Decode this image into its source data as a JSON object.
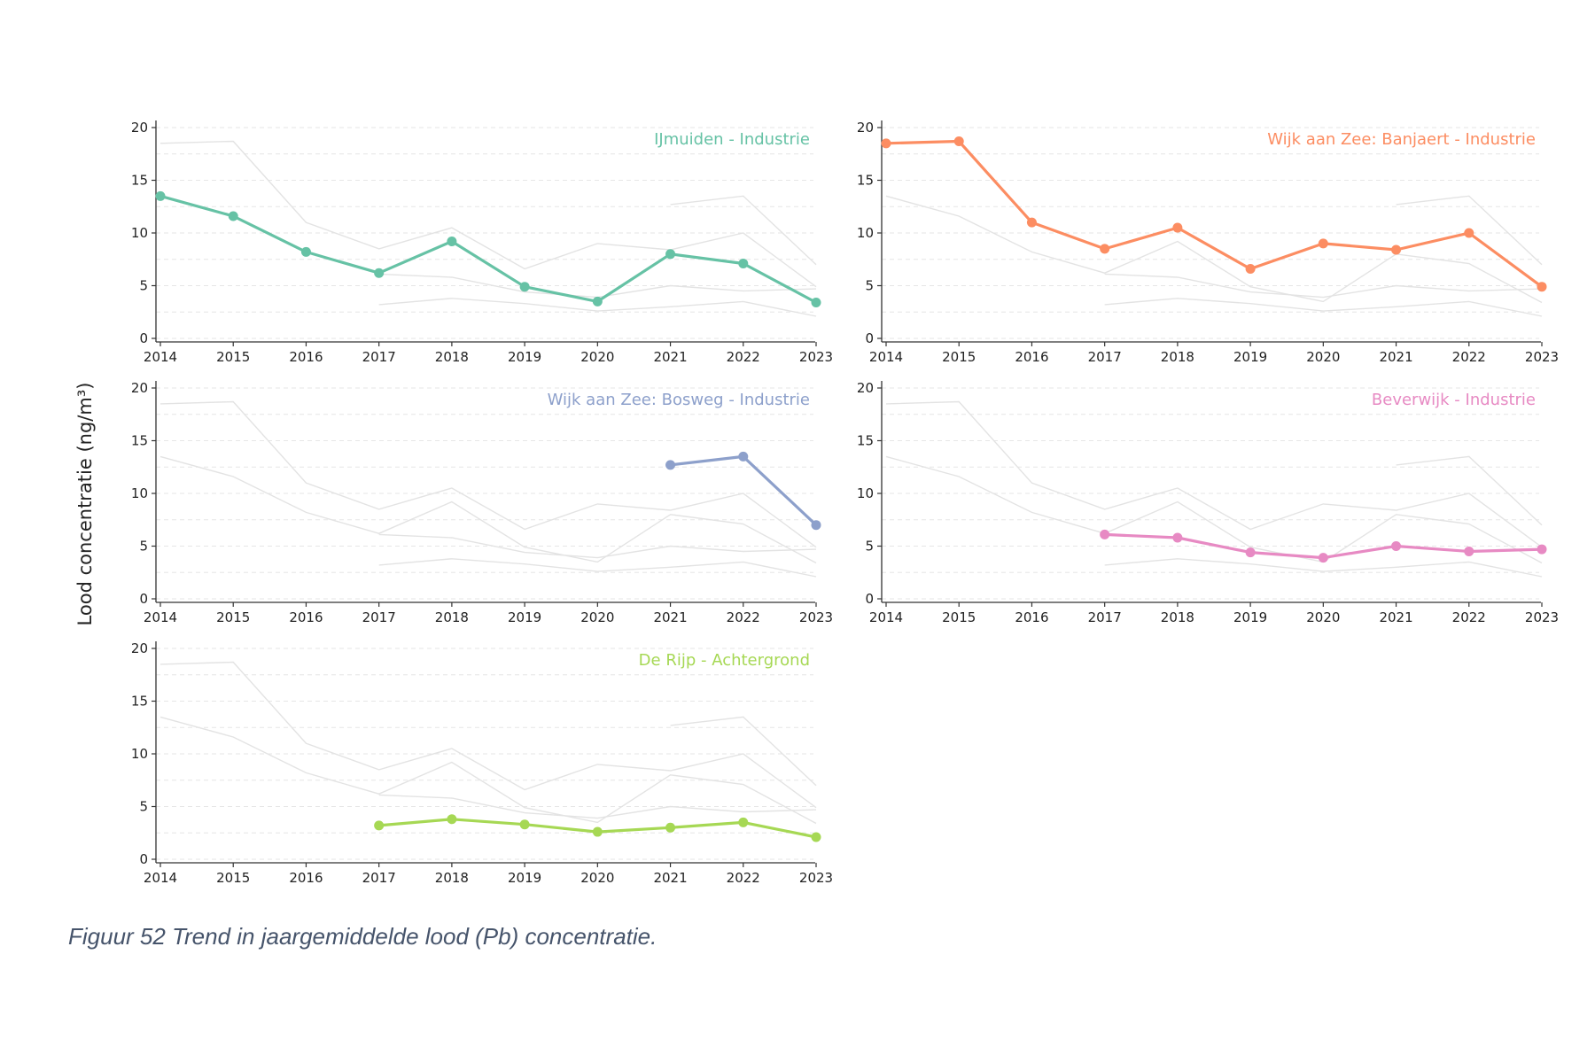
{
  "figure": {
    "ylabel": "Lood concentratie (ng/m³)",
    "caption": "Figuur 52 Trend in jaargemiddelde lood (Pb) concentratie."
  },
  "chart_data": {
    "type": "line",
    "x": [
      2014,
      2015,
      2016,
      2017,
      2018,
      2019,
      2020,
      2021,
      2022,
      2023
    ],
    "ylim": [
      0,
      20
    ],
    "yticks": [
      0,
      5,
      10,
      15,
      20
    ],
    "grid": "horizontal dashed",
    "background_series_color": "#e3e3e3",
    "panels": [
      {
        "title": "IJmuiden - Industrie",
        "color": "#66c2a5",
        "values": [
          13.5,
          11.6,
          8.2,
          6.2,
          9.2,
          4.9,
          3.5,
          8.0,
          7.1,
          3.4
        ]
      },
      {
        "title": "Wijk aan Zee: Banjaert - Industrie",
        "color": "#fc8d62",
        "values": [
          18.5,
          18.7,
          11.0,
          8.5,
          10.5,
          6.6,
          9.0,
          8.4,
          10.0,
          4.9
        ]
      },
      {
        "title": "Wijk aan Zee: Bosweg - Industrie",
        "color": "#8da0cb",
        "values": [
          null,
          null,
          null,
          null,
          null,
          null,
          null,
          12.7,
          13.5,
          7.0
        ]
      },
      {
        "title": "Beverwijk - Industrie",
        "color": "#e78ac3",
        "values": [
          null,
          null,
          null,
          6.1,
          5.8,
          4.4,
          3.9,
          5.0,
          4.5,
          4.7
        ]
      },
      {
        "title": "De Rijp - Achtergrond",
        "color": "#a6d854",
        "values": [
          null,
          null,
          null,
          3.2,
          3.8,
          3.3,
          2.6,
          3.0,
          3.5,
          2.1
        ]
      }
    ]
  }
}
